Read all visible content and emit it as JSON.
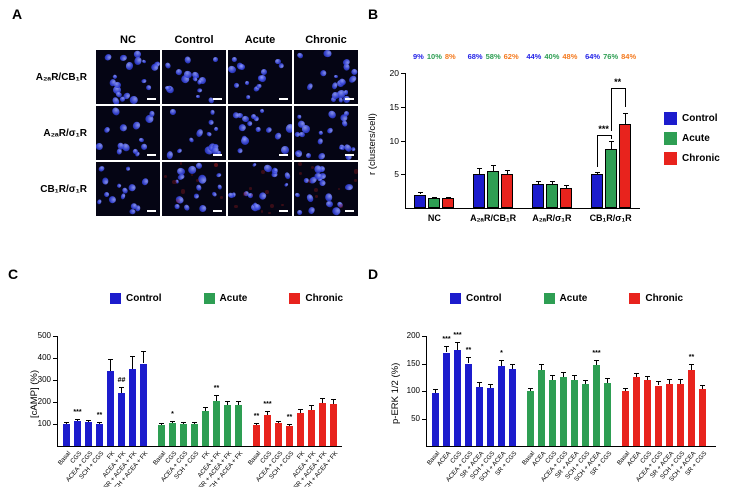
{
  "panels": {
    "A": {
      "label": "A",
      "columns": [
        "NC",
        "Control",
        "Acute",
        "Chronic"
      ],
      "rows": [
        "A₂ₐR/CB₁R",
        "A₂ₐR/σ₁R",
        "CB₁R/σ₁R"
      ]
    },
    "B": {
      "label": "B"
    },
    "C": {
      "label": "C"
    },
    "D": {
      "label": "D"
    }
  },
  "legend": {
    "control": "Control",
    "acute": "Acute",
    "chronic": "Chronic"
  },
  "colors": {
    "control": "#1c1ccd",
    "acute": "#2e9e53",
    "chronic": "#e8231d",
    "image_bg": "#050514",
    "nucleus": "#3a48e0",
    "scale_bar": "#ffffff"
  },
  "percent_colors": [
    "#2424e8",
    "#2e9e53",
    "#f47a1f"
  ],
  "chart_data": [
    {
      "id": "B",
      "type": "bar",
      "ylabel": "r (clusters/cell)",
      "ylim": [
        0,
        20
      ],
      "yticks": [
        5,
        10,
        15,
        20
      ],
      "categories": [
        "NC",
        "A₂ₐR/CB₁R",
        "A₂ₐR/σ₁R",
        "CB₁R/σ₁R"
      ],
      "series": [
        {
          "name": "Control",
          "values": [
            2,
            5,
            3.5,
            5
          ],
          "errors": [
            0.3,
            0.9,
            0.5,
            0.4
          ]
        },
        {
          "name": "Acute",
          "values": [
            1.5,
            5.5,
            3.5,
            8.8
          ],
          "errors": [
            0.2,
            0.8,
            0.5,
            1.2
          ]
        },
        {
          "name": "Chronic",
          "values": [
            1.5,
            5,
            3,
            12.5
          ],
          "errors": [
            0.2,
            0.7,
            0.4,
            1.6
          ]
        }
      ],
      "percent_labels": [
        [
          "9%",
          "10%",
          "8%"
        ],
        [
          "68%",
          "58%",
          "62%"
        ],
        [
          "44%",
          "40%",
          "48%"
        ],
        [
          "64%",
          "76%",
          "84%"
        ]
      ],
      "annotations": [
        {
          "label": "***",
          "group": 3,
          "from": "Control",
          "to": "Acute"
        },
        {
          "label": "**",
          "group": 3,
          "from": "Acute",
          "to": "Chronic"
        }
      ],
      "legend_position": "right"
    },
    {
      "id": "C",
      "type": "bar",
      "ylabel": "[cAMP] (%)",
      "ylim": [
        0,
        500
      ],
      "yticks": [
        100,
        200,
        300,
        400,
        500
      ],
      "series": [
        {
          "name": "Control",
          "categories": [
            "Basal",
            "CGS",
            "ACEA + CGS",
            "SCH + CGS",
            "FK",
            "ACEA + FK",
            "SR + ACEA + FK",
            "SCH + ACEA + FK"
          ],
          "values": [
            100,
            115,
            110,
            100,
            340,
            240,
            350,
            375
          ],
          "errors": [
            8,
            10,
            8,
            8,
            55,
            30,
            60,
            55
          ],
          "marks": [
            "",
            "***",
            "",
            "**",
            "",
            "##",
            "",
            ""
          ]
        },
        {
          "name": "Acute",
          "categories": [
            "Basal",
            "CGS",
            "ACEA + CGS",
            "SCH + CGS",
            "FK",
            "ACEA + FK",
            "SR + ACEA + FK",
            "SCH + ACEA + FK"
          ],
          "values": [
            95,
            105,
            100,
            100,
            160,
            205,
            185,
            185
          ],
          "errors": [
            8,
            8,
            8,
            8,
            18,
            25,
            20,
            18
          ],
          "marks": [
            "",
            "*",
            "",
            "",
            "",
            "**",
            "",
            ""
          ]
        },
        {
          "name": "Chronic",
          "categories": [
            "Basal",
            "CGS",
            "ACEA + CGS",
            "SCH + CGS",
            "FK",
            "ACEA + FK",
            "SR + ACEA + FK",
            "SCH + ACEA + FK"
          ],
          "values": [
            95,
            140,
            105,
            90,
            150,
            165,
            195,
            190
          ],
          "errors": [
            10,
            18,
            10,
            10,
            18,
            20,
            25,
            22
          ],
          "marks": [
            "**",
            "***",
            "",
            "**",
            "",
            "",
            "",
            ""
          ]
        }
      ],
      "legend_position": "top"
    },
    {
      "id": "D",
      "type": "bar",
      "ylabel": "p-ERK 1/2 (%)",
      "ylim": [
        0,
        200
      ],
      "yticks": [
        50,
        100,
        150,
        200
      ],
      "series": [
        {
          "name": "Control",
          "categories": [
            "Basal",
            "ACEA",
            "CGS",
            "ACEA + CGS",
            "SR + ACEA",
            "SCH + CGS",
            "SCH + ACEA",
            "SR + CGS"
          ],
          "values": [
            97,
            170,
            175,
            150,
            108,
            105,
            145,
            140
          ],
          "errors": [
            6,
            12,
            15,
            12,
            8,
            8,
            12,
            10
          ],
          "marks": [
            "",
            "***",
            "***",
            "**",
            "",
            "",
            "*",
            ""
          ]
        },
        {
          "name": "Acute",
          "categories": [
            "Basal",
            "ACEA",
            "CGS",
            "ACEA + CGS",
            "SR + ACEA",
            "SCH + CGS",
            "SCH + ACEA",
            "SR + CGS"
          ],
          "values": [
            100,
            138,
            120,
            125,
            120,
            112,
            147,
            115
          ],
          "errors": [
            6,
            12,
            10,
            10,
            10,
            8,
            10,
            8
          ],
          "marks": [
            "",
            "",
            "",
            "",
            "",
            "",
            "***",
            ""
          ]
        },
        {
          "name": "Chronic",
          "categories": [
            "Basal",
            "ACEA",
            "CGS",
            "ACEA + CGS",
            "SR + ACEA",
            "SCH + CGS",
            "SCH + ACEA",
            "SR + CGS"
          ],
          "values": [
            100,
            125,
            120,
            110,
            113,
            113,
            138,
            103
          ],
          "errors": [
            6,
            8,
            8,
            8,
            8,
            8,
            12,
            8
          ],
          "marks": [
            "",
            "",
            "",
            "",
            "",
            "",
            "**",
            ""
          ]
        }
      ],
      "legend_position": "top"
    }
  ]
}
